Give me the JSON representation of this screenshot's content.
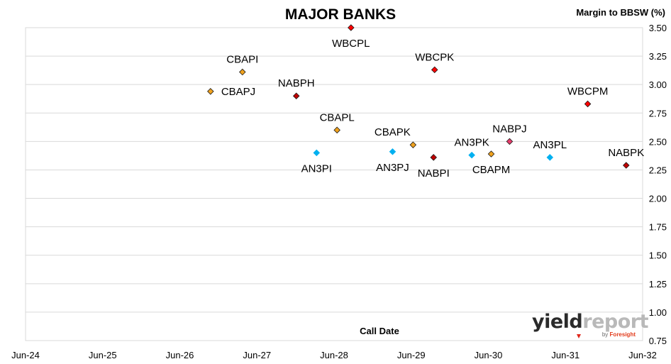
{
  "chart_data": {
    "type": "scatter",
    "title": "MAJOR BANKS",
    "ylabel": "Margin to BBSW (%)",
    "xlabel": "Call Date",
    "x_ticks": [
      "Jun-24",
      "Jun-25",
      "Jun-26",
      "Jun-27",
      "Jun-28",
      "Jun-29",
      "Jun-30",
      "Jun-31",
      "Jun-32"
    ],
    "xlim": [
      "2024-06",
      "2032-06"
    ],
    "y_ticks": [
      "0.75",
      "1.00",
      "1.25",
      "1.50",
      "1.75",
      "2.00",
      "2.25",
      "2.50",
      "2.75",
      "3.00",
      "3.25",
      "3.50"
    ],
    "ylim": [
      0.75,
      3.5
    ],
    "y_axis_position": "right",
    "grid": true,
    "points": [
      {
        "label": "CBAPJ",
        "x": "2026-10-25",
        "y": 2.94,
        "color": "#f0a21e",
        "label_pos": "right"
      },
      {
        "label": "CBAPI",
        "x": "2027-03-25",
        "y": 3.11,
        "color": "#f0a21e",
        "label_pos": "above"
      },
      {
        "label": "NABPH",
        "x": "2027-12-05",
        "y": 2.9,
        "color": "#c00000",
        "label_pos": "above"
      },
      {
        "label": "AN3PI",
        "x": "2028-03-10",
        "y": 2.4,
        "color": "#00b0f0",
        "label_pos": "below"
      },
      {
        "label": "CBAPL",
        "x": "2028-06-15",
        "y": 2.6,
        "color": "#f0a21e",
        "label_pos": "above"
      },
      {
        "label": "WBCPL",
        "x": "2028-08-20",
        "y": 3.5,
        "color": "#ff0000",
        "label_pos": "below"
      },
      {
        "label": "AN3PJ",
        "x": "2029-03-05",
        "y": 2.41,
        "color": "#00b0f0",
        "label_pos": "below"
      },
      {
        "label": "CBAPK",
        "x": "2029-06-10",
        "y": 2.47,
        "color": "#f0a21e",
        "label_pos": "above-left"
      },
      {
        "label": "NABPI",
        "x": "2029-09-15",
        "y": 2.36,
        "color": "#c00000",
        "label_pos": "below"
      },
      {
        "label": "WBCPK",
        "x": "2029-09-20",
        "y": 3.13,
        "color": "#ff0000",
        "label_pos": "above"
      },
      {
        "label": "AN3PK",
        "x": "2030-03-15",
        "y": 2.38,
        "color": "#00b0f0",
        "label_pos": "above"
      },
      {
        "label": "CBAPM",
        "x": "2030-06-15",
        "y": 2.39,
        "color": "#f0a21e",
        "label_pos": "below"
      },
      {
        "label": "NABPJ",
        "x": "2030-09-10",
        "y": 2.5,
        "color": "#e83e6c",
        "label_pos": "above"
      },
      {
        "label": "AN3PL",
        "x": "2031-03-20",
        "y": 2.36,
        "color": "#00b0f0",
        "label_pos": "above"
      },
      {
        "label": "WBCPM",
        "x": "2031-09-15",
        "y": 2.83,
        "color": "#ff0000",
        "label_pos": "above"
      },
      {
        "label": "NABPK",
        "x": "2032-03-15",
        "y": 2.29,
        "color": "#c00000",
        "label_pos": "above"
      }
    ]
  },
  "logo": {
    "name": "yieldreport",
    "part1": "yield",
    "part2": "report",
    "by": "by",
    "brand": "Foresight"
  }
}
